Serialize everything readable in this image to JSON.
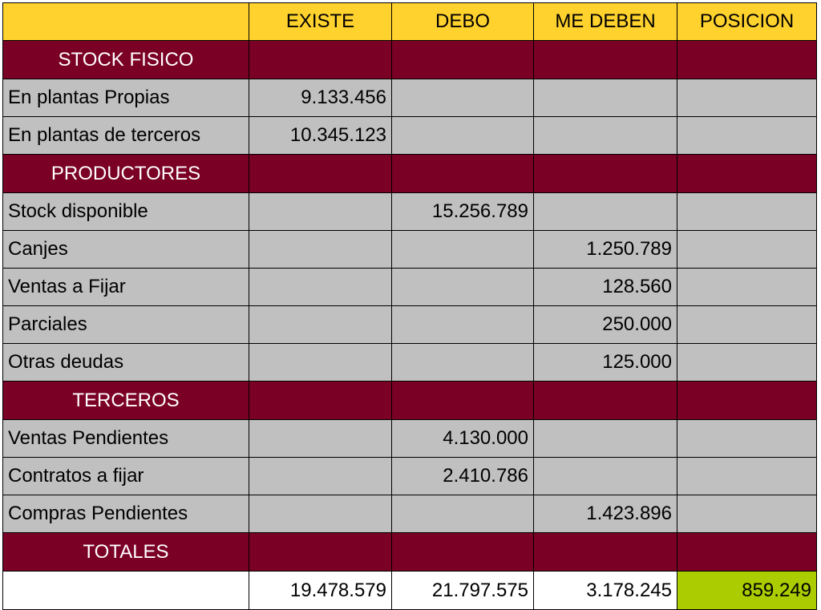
{
  "columns": {
    "existe": "EXISTE",
    "debo": "DEBO",
    "me_deben": "ME DEBEN",
    "posicion": "POSICION"
  },
  "sections": [
    {
      "title": "STOCK FISICO",
      "rows": [
        {
          "label": "En plantas Propias",
          "existe": "9.133.456",
          "debo": "",
          "me_deben": "",
          "posicion": ""
        },
        {
          "label": "En plantas de terceros",
          "existe": "10.345.123",
          "debo": "",
          "me_deben": "",
          "posicion": ""
        }
      ]
    },
    {
      "title": "PRODUCTORES",
      "rows": [
        {
          "label": "Stock disponible",
          "existe": "",
          "debo": "15.256.789",
          "me_deben": "",
          "posicion": ""
        },
        {
          "label": "Canjes",
          "existe": "",
          "debo": "",
          "me_deben": "1.250.789",
          "posicion": ""
        },
        {
          "label": "Ventas a Fijar",
          "existe": "",
          "debo": "",
          "me_deben": "128.560",
          "posicion": ""
        },
        {
          "label": "Parciales",
          "existe": "",
          "debo": "",
          "me_deben": "250.000",
          "posicion": ""
        },
        {
          "label": "Otras deudas",
          "existe": "",
          "debo": "",
          "me_deben": "125.000",
          "posicion": ""
        }
      ]
    },
    {
      "title": "TERCEROS",
      "rows": [
        {
          "label": "Ventas Pendientes",
          "existe": "",
          "debo": "4.130.000",
          "me_deben": "",
          "posicion": ""
        },
        {
          "label": "Contratos a fijar",
          "existe": "",
          "debo": "2.410.786",
          "me_deben": "",
          "posicion": ""
        },
        {
          "label": "Compras Pendientes",
          "existe": "",
          "debo": "",
          "me_deben": "1.423.896",
          "posicion": ""
        }
      ]
    }
  ],
  "totals": {
    "title": "TOTALES",
    "existe": "19.478.579",
    "debo": "21.797.575",
    "me_deben": "3.178.245",
    "posicion": "859.249"
  },
  "colors": {
    "header_bg": "#FFD22E",
    "section_bg": "#7A0026",
    "row_bg": "#C0C0C0",
    "position_highlight": "#AACC00"
  }
}
